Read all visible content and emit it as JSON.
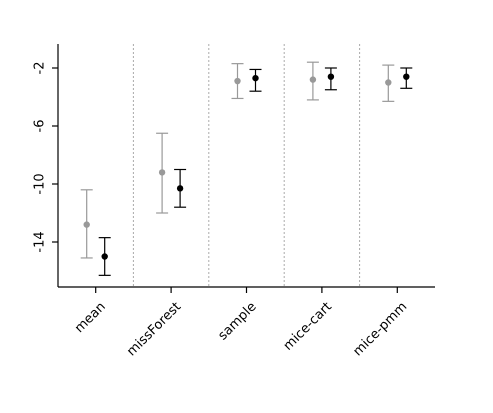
{
  "chart_data": {
    "type": "scatter",
    "categories": [
      "mean",
      "missForest",
      "sample",
      "mice-cart",
      "mice-pmm"
    ],
    "ylim": [
      -17,
      0
    ],
    "yticks": [
      -2,
      -6,
      -10,
      -14
    ],
    "grid": "vertical dotted separators between categories",
    "series": [
      {
        "color": "#999999",
        "values": [
          -12.8,
          -9.2,
          -2.9,
          -2.8,
          -3.0
        ],
        "lower": [
          -15.1,
          -12.0,
          -4.1,
          -4.2,
          -4.3
        ],
        "upper": [
          -10.4,
          -6.5,
          -1.7,
          -1.6,
          -1.8
        ]
      },
      {
        "color": "#000000",
        "values": [
          -15.0,
          -10.3,
          -2.7,
          -2.6,
          -2.6
        ],
        "lower": [
          -16.3,
          -11.6,
          -3.6,
          -3.5,
          -3.4
        ],
        "upper": [
          -13.7,
          -9.0,
          -2.1,
          -2.0,
          -2.0
        ]
      }
    ]
  }
}
